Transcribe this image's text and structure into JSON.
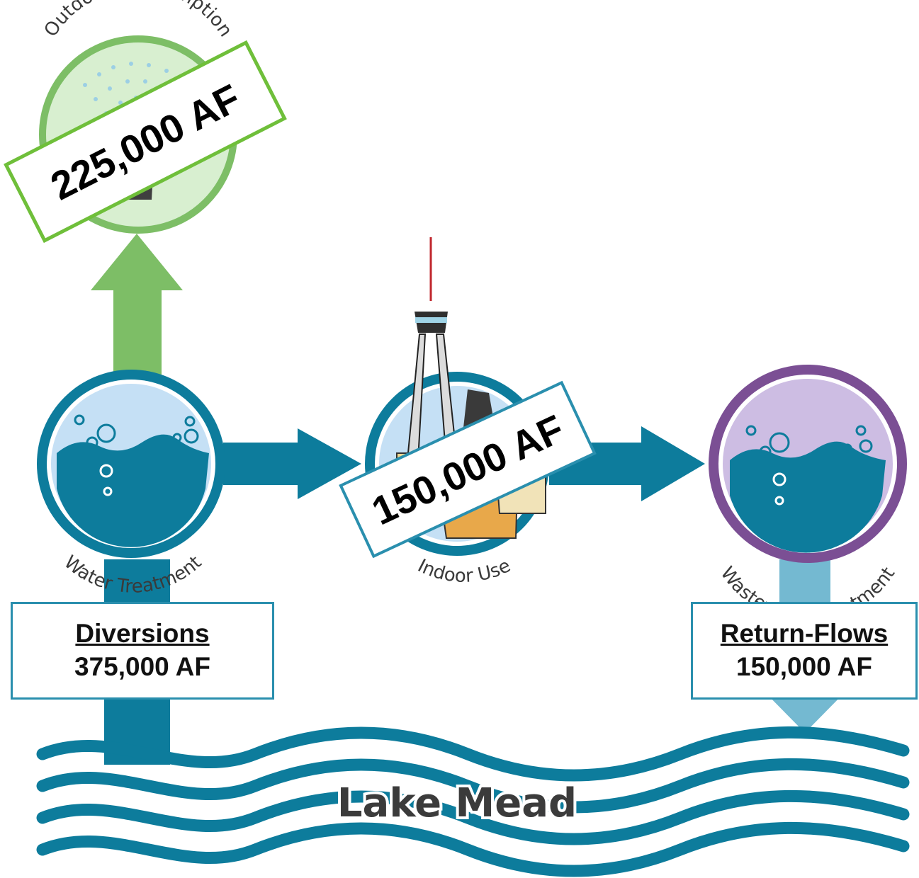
{
  "nodes": {
    "outdoor": {
      "label": "Outdoor Consumption",
      "amount": "225,000 AF"
    },
    "water_treatment": {
      "label": "Water Treatment"
    },
    "indoor": {
      "label": "Indoor Use",
      "amount": "150,000 AF"
    },
    "wastewater": {
      "label": "Wastewater Treatment"
    }
  },
  "diversions": {
    "heading": "Diversions",
    "amount": "375,000 AF"
  },
  "return_flows": {
    "heading": "Return-Flows",
    "amount": "150,000 AF"
  },
  "lake": {
    "label": "Lake Mead"
  },
  "colors": {
    "teal": "#0d7c9c",
    "green": "#7dbe66",
    "purple": "#7b4f94",
    "light_blue": "#c5e0f5",
    "light_green": "#d8efd0",
    "lavender": "#cdbde3",
    "box_border": "#2a8fae",
    "tag_green_border": "#6fbf3a"
  }
}
